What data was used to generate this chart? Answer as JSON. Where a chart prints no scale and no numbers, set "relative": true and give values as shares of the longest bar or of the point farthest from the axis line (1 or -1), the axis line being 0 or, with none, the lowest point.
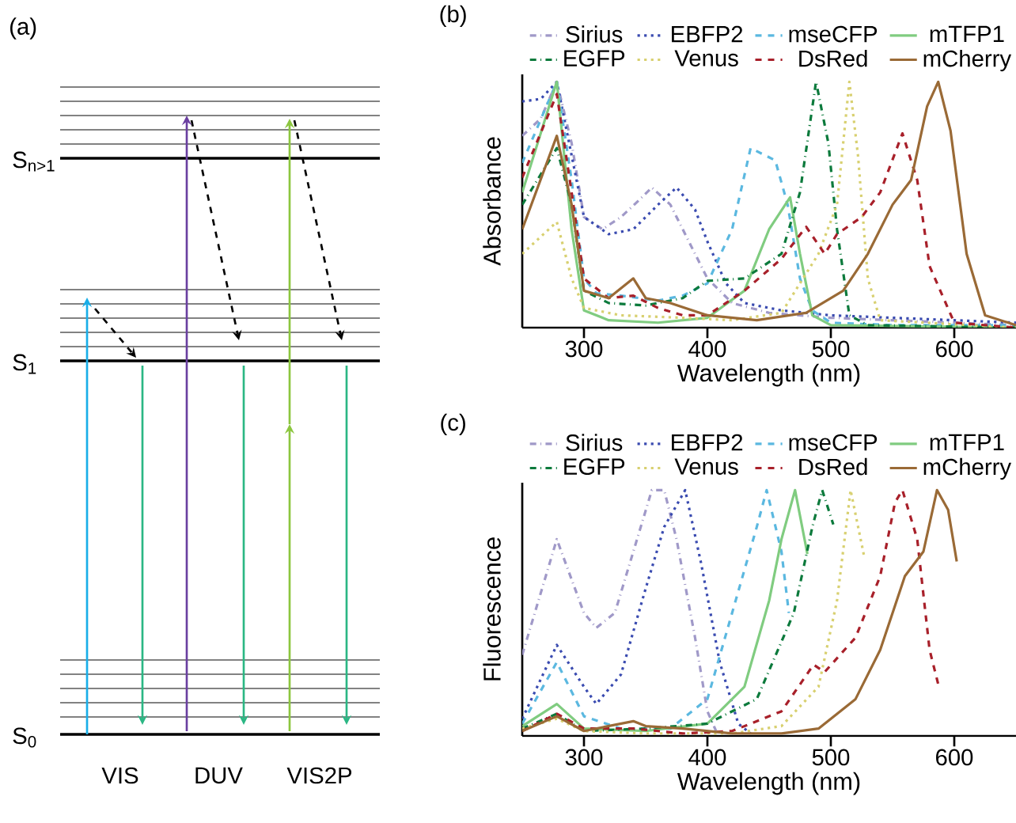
{
  "chart_data": [
    {
      "type": "other",
      "title": "(a)",
      "annotations": [
        "S$_{n>1}$",
        "S$_{1}$",
        "S$_{0}$",
        "VIS",
        "DUV",
        "VIS2P"
      ]
    },
    {
      "type": "line",
      "title": "(b)",
      "xlabel": "Wavelength (nm)",
      "ylabel": "Absorbance",
      "relative": true,
      "xlim": [
        250,
        650
      ],
      "xticks": [
        300,
        400,
        500,
        600
      ],
      "tick_labels": "x",
      "legend": "top",
      "marker": "none",
      "series": [
        {
          "name": "Sirius",
          "color": "#a099c8",
          "line_style": "dashdot",
          "x": [
            250,
            265,
            278,
            290,
            300,
            315,
            330,
            345,
            355,
            370,
            385,
            400,
            420,
            450,
            500,
            550,
            650
          ],
          "values": [
            0.78,
            0.85,
            1.0,
            0.75,
            0.45,
            0.4,
            0.45,
            0.52,
            0.57,
            0.5,
            0.35,
            0.2,
            0.1,
            0.06,
            0.04,
            0.03,
            0.01
          ]
        },
        {
          "name": "EBFP2",
          "color": "#3a4bb0",
          "line_style": "dotted",
          "x": [
            250,
            265,
            278,
            290,
            300,
            320,
            340,
            360,
            375,
            390,
            400,
            415,
            430,
            460,
            500,
            550,
            600,
            650
          ],
          "values": [
            0.92,
            0.93,
            1.0,
            0.7,
            0.45,
            0.38,
            0.4,
            0.5,
            0.57,
            0.48,
            0.35,
            0.18,
            0.1,
            0.07,
            0.05,
            0.04,
            0.03,
            0.02
          ]
        },
        {
          "name": "mseCFP",
          "color": "#5bb8e0",
          "line_style": "dashed",
          "x": [
            250,
            278,
            290,
            300,
            310,
            330,
            360,
            380,
            400,
            420,
            435,
            455,
            465,
            475,
            485,
            500,
            550,
            650
          ],
          "values": [
            0.67,
            1.0,
            0.6,
            0.2,
            0.14,
            0.13,
            0.11,
            0.13,
            0.18,
            0.4,
            0.73,
            0.68,
            0.5,
            0.2,
            0.07,
            0.02,
            0.01,
            0.01
          ]
        },
        {
          "name": "mTFP1",
          "color": "#80cc80",
          "line_style": "solid",
          "x": [
            250,
            278,
            290,
            300,
            320,
            360,
            400,
            430,
            450,
            467,
            475,
            485,
            500,
            650
          ],
          "values": [
            0.55,
            1.0,
            0.4,
            0.07,
            0.03,
            0.02,
            0.04,
            0.15,
            0.4,
            0.53,
            0.3,
            0.05,
            0.01,
            0.0
          ]
        },
        {
          "name": "EGFP",
          "color": "#0c7a3c",
          "line_style": "dashdot",
          "x": [
            250,
            278,
            290,
            300,
            320,
            350,
            380,
            400,
            430,
            460,
            475,
            488,
            498,
            505,
            515,
            530,
            650
          ],
          "values": [
            0.5,
            0.73,
            0.5,
            0.15,
            0.1,
            0.09,
            0.12,
            0.19,
            0.2,
            0.3,
            0.55,
            1.0,
            0.75,
            0.4,
            0.05,
            0.01,
            0.0
          ]
        },
        {
          "name": "Venus",
          "color": "#d8d070",
          "line_style": "dotted",
          "x": [
            250,
            278,
            290,
            300,
            330,
            380,
            420,
            460,
            490,
            505,
            515,
            522,
            530,
            540,
            650
          ],
          "values": [
            0.3,
            0.43,
            0.2,
            0.08,
            0.05,
            0.04,
            0.03,
            0.06,
            0.3,
            0.5,
            1.0,
            0.7,
            0.2,
            0.03,
            0.0
          ]
        },
        {
          "name": "DsRed",
          "color": "#a8202a",
          "line_style": "dashed",
          "x": [
            250,
            278,
            290,
            300,
            320,
            340,
            360,
            380,
            400,
            430,
            460,
            480,
            495,
            505,
            525,
            540,
            558,
            570,
            580,
            600,
            650
          ],
          "values": [
            0.61,
            0.95,
            0.55,
            0.2,
            0.12,
            0.13,
            0.08,
            0.05,
            0.05,
            0.15,
            0.28,
            0.41,
            0.3,
            0.38,
            0.45,
            0.55,
            0.79,
            0.6,
            0.25,
            0.02,
            0.0
          ]
        },
        {
          "name": "mCherry",
          "color": "#9a6a36",
          "line_style": "solid",
          "x": [
            250,
            278,
            290,
            300,
            320,
            340,
            350,
            370,
            400,
            440,
            480,
            510,
            530,
            550,
            565,
            578,
            587,
            597,
            610,
            625,
            650
          ],
          "values": [
            0.4,
            0.78,
            0.5,
            0.15,
            0.12,
            0.2,
            0.12,
            0.1,
            0.05,
            0.03,
            0.06,
            0.15,
            0.3,
            0.5,
            0.6,
            0.9,
            1.0,
            0.8,
            0.3,
            0.05,
            0.01
          ]
        }
      ]
    },
    {
      "type": "line",
      "title": "(c)",
      "xlabel": "Wavelength (nm)",
      "ylabel": "Fluorescence",
      "relative": true,
      "xlim": [
        250,
        650
      ],
      "xticks": [
        300,
        400,
        500,
        600
      ],
      "tick_labels": "x",
      "legend": "top",
      "marker": "none",
      "series": [
        {
          "name": "Sirius",
          "color": "#a099c8",
          "line_style": "dashdot",
          "x": [
            250,
            278,
            300,
            310,
            325,
            340,
            355,
            365,
            375,
            390,
            400,
            407
          ],
          "values": [
            0.33,
            0.8,
            0.5,
            0.44,
            0.5,
            0.75,
            1.0,
            1.0,
            0.8,
            0.4,
            0.1,
            0.02
          ]
        },
        {
          "name": "EBFP2",
          "color": "#3a4bb0",
          "line_style": "dotted",
          "x": [
            250,
            278,
            300,
            310,
            330,
            350,
            365,
            382,
            395,
            410,
            425,
            435
          ],
          "values": [
            0.07,
            0.37,
            0.2,
            0.13,
            0.25,
            0.6,
            0.85,
            1.0,
            0.7,
            0.3,
            0.05,
            0.01
          ]
        },
        {
          "name": "mseCFP",
          "color": "#5bb8e0",
          "line_style": "dashed",
          "x": [
            250,
            278,
            300,
            330,
            370,
            400,
            420,
            440,
            448,
            460,
            466
          ],
          "values": [
            0.05,
            0.3,
            0.08,
            0.03,
            0.03,
            0.15,
            0.5,
            0.85,
            1.0,
            0.75,
            0.5
          ]
        },
        {
          "name": "mTFP1",
          "color": "#80cc80",
          "line_style": "solid",
          "x": [
            250,
            278,
            300,
            350,
            400,
            430,
            450,
            460,
            471,
            481
          ],
          "values": [
            0.04,
            0.13,
            0.03,
            0.02,
            0.05,
            0.2,
            0.55,
            0.8,
            1.0,
            0.74
          ]
        },
        {
          "name": "EGFP",
          "color": "#0c7a3c",
          "line_style": "dashdot",
          "x": [
            250,
            278,
            300,
            350,
            400,
            440,
            470,
            485,
            493,
            502
          ],
          "values": [
            0.03,
            0.09,
            0.02,
            0.03,
            0.05,
            0.15,
            0.5,
            0.85,
            1.0,
            0.86
          ]
        },
        {
          "name": "Venus",
          "color": "#d8d070",
          "line_style": "dotted",
          "x": [
            250,
            278,
            300,
            350,
            420,
            460,
            490,
            505,
            516,
            527
          ],
          "values": [
            0.03,
            0.07,
            0.02,
            0.01,
            0.01,
            0.04,
            0.2,
            0.55,
            1.0,
            0.73
          ]
        },
        {
          "name": "DsRed",
          "color": "#a8202a",
          "line_style": "dashed",
          "x": [
            250,
            278,
            300,
            340,
            380,
            420,
            460,
            486,
            495,
            520,
            540,
            552,
            558,
            570,
            580,
            587
          ],
          "values": [
            0.02,
            0.09,
            0.03,
            0.03,
            0.01,
            0.02,
            0.1,
            0.29,
            0.26,
            0.4,
            0.65,
            0.95,
            1.0,
            0.8,
            0.35,
            0.21
          ]
        },
        {
          "name": "mCherry",
          "color": "#9a6a36",
          "line_style": "solid",
          "x": [
            250,
            278,
            300,
            340,
            350,
            380,
            420,
            460,
            490,
            520,
            540,
            560,
            575,
            586,
            595,
            602
          ],
          "values": [
            0.02,
            0.08,
            0.02,
            0.06,
            0.04,
            0.03,
            0.01,
            0.01,
            0.03,
            0.15,
            0.35,
            0.65,
            0.75,
            1.0,
            0.92,
            0.71
          ]
        }
      ]
    }
  ]
}
